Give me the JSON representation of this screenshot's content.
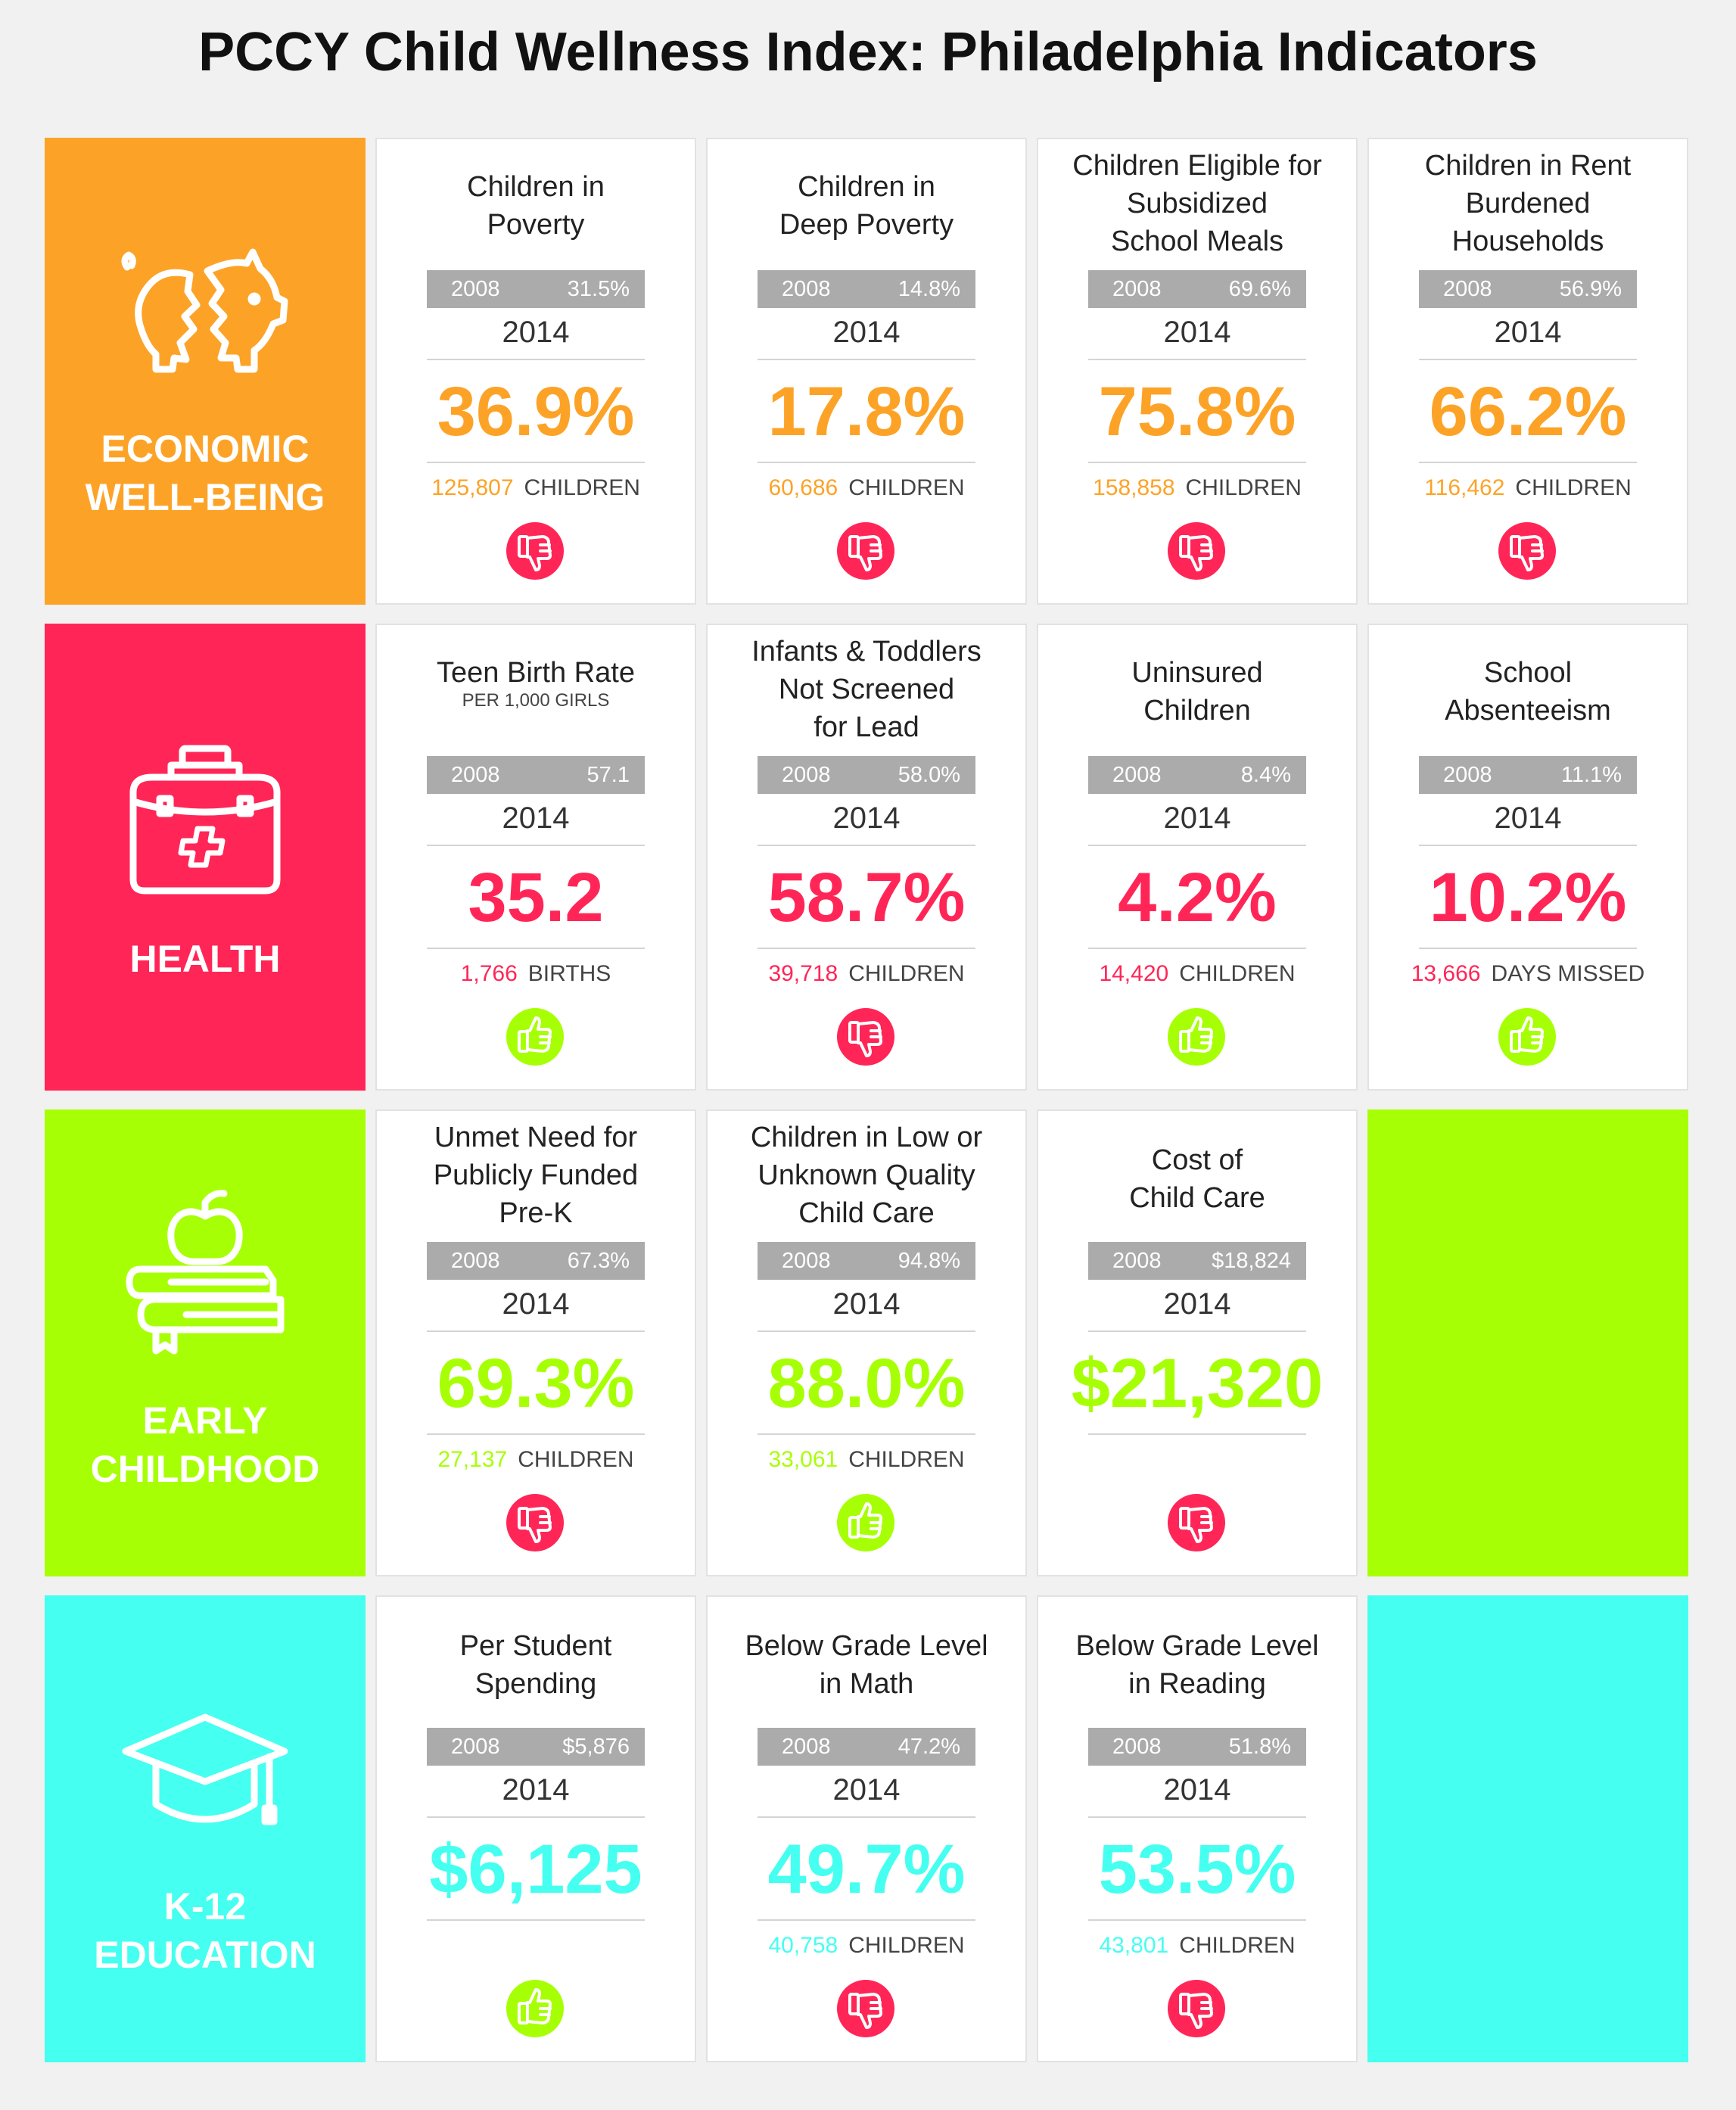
{
  "title": "PCCY Child Wellness Index: Philadelphia Indicators",
  "colors": {
    "economic": "#fca327",
    "health": "#ff2657",
    "early": "#a7ff05",
    "k12": "#45fff0",
    "bar": "#ababab",
    "thumb_down": "#ff2657",
    "thumb_up": "#a7ff05"
  },
  "rows": [
    {
      "category": "ECONOMIC\nWELL-BEING",
      "icon": "broken-piggy-bank-icon",
      "color": "#fca327",
      "cards": [
        {
          "title": "Children in\nPoverty",
          "bar_year": "2008",
          "bar_value": "31.5%",
          "year": "2014",
          "value": "36.9%",
          "count": "125,807",
          "unit": "CHILDREN",
          "thumb": "down"
        },
        {
          "title": "Children in\nDeep Poverty",
          "bar_year": "2008",
          "bar_value": "14.8%",
          "year": "2014",
          "value": "17.8%",
          "count": "60,686",
          "unit": "CHILDREN",
          "thumb": "down"
        },
        {
          "title": "Children Eligible for\nSubsidized\nSchool Meals",
          "bar_year": "2008",
          "bar_value": "69.6%",
          "year": "2014",
          "value": "75.8%",
          "count": "158,858",
          "unit": "CHILDREN",
          "thumb": "down"
        },
        {
          "title": "Children in Rent\nBurdened\nHouseholds",
          "bar_year": "2008",
          "bar_value": "56.9%",
          "year": "2014",
          "value": "66.2%",
          "count": "116,462",
          "unit": "CHILDREN",
          "thumb": "down"
        }
      ]
    },
    {
      "category": "HEALTH",
      "icon": "medical-bag-icon",
      "color": "#ff2657",
      "cards": [
        {
          "title": "Teen Birth Rate",
          "subtitle": "PER 1,000 GIRLS",
          "bar_year": "2008",
          "bar_value": "57.1",
          "year": "2014",
          "value": "35.2",
          "count": "1,766",
          "unit": "BIRTHS",
          "thumb": "up"
        },
        {
          "title": "Infants & Toddlers\nNot Screened\nfor Lead",
          "bar_year": "2008",
          "bar_value": "58.0%",
          "year": "2014",
          "value": "58.7%",
          "count": "39,718",
          "unit": "CHILDREN",
          "thumb": "down"
        },
        {
          "title": "Uninsured\nChildren",
          "bar_year": "2008",
          "bar_value": "8.4%",
          "year": "2014",
          "value": "4.2%",
          "count": "14,420",
          "unit": "CHILDREN",
          "thumb": "up"
        },
        {
          "title": "School\nAbsenteeism",
          "bar_year": "2008",
          "bar_value": "11.1%",
          "year": "2014",
          "value": "10.2%",
          "count": "13,666",
          "unit": "DAYS MISSED",
          "thumb": "up"
        }
      ]
    },
    {
      "category": "EARLY\nCHILDHOOD",
      "icon": "apple-on-books-icon",
      "color": "#a7ff05",
      "cards": [
        {
          "title": "Unmet Need for\nPublicly Funded\nPre-K",
          "bar_year": "2008",
          "bar_value": "67.3%",
          "year": "2014",
          "value": "69.3%",
          "count": "27,137",
          "unit": "CHILDREN",
          "thumb": "down"
        },
        {
          "title": "Children in Low or\nUnknown Quality\nChild Care",
          "bar_year": "2008",
          "bar_value": "94.8%",
          "year": "2014",
          "value": "88.0%",
          "count": "33,061",
          "unit": "CHILDREN",
          "thumb": "up"
        },
        {
          "title": "Cost of\nChild Care",
          "bar_year": "2008",
          "bar_value": "$18,824",
          "year": "2014",
          "value": "$21,320",
          "count": "",
          "unit": "",
          "thumb": "down"
        }
      ]
    },
    {
      "category": "K-12\nEDUCATION",
      "icon": "graduation-cap-icon",
      "color": "#45fff0",
      "cards": [
        {
          "title": "Per Student\nSpending",
          "bar_year": "2008",
          "bar_value": "$5,876",
          "year": "2014",
          "value": "$6,125",
          "count": "",
          "unit": "",
          "thumb": "up"
        },
        {
          "title": "Below Grade Level\nin Math",
          "bar_year": "2008",
          "bar_value": "47.2%",
          "year": "2014",
          "value": "49.7%",
          "count": "40,758",
          "unit": "CHILDREN",
          "thumb": "down"
        },
        {
          "title": "Below Grade Level\nin Reading",
          "bar_year": "2008",
          "bar_value": "51.8%",
          "year": "2014",
          "value": "53.5%",
          "count": "43,801",
          "unit": "CHILDREN",
          "thumb": "down"
        }
      ]
    }
  ]
}
